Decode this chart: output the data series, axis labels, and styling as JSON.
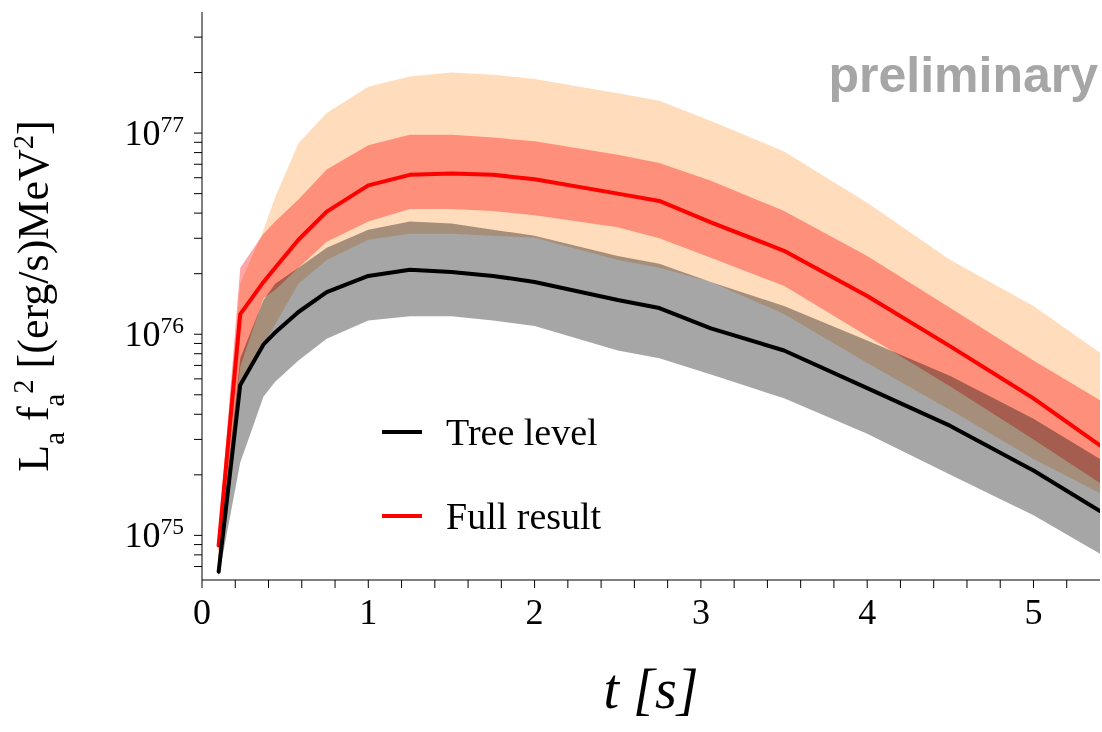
{
  "chart_data": {
    "type": "line",
    "xlabel": "t [s]",
    "ylabel": "L$_{a}$ f$_{a}$$^{2}$ [(erg/s)MeV$^{2}$]",
    "annotations": [
      "preliminary"
    ],
    "log": "y",
    "legend": "bottom left",
    "xlim": [
      0,
      5.4
    ],
    "xticks": [
      0,
      {
        "value": 0.2,
        "label": null
      },
      {
        "value": 0.4,
        "label": null
      },
      {
        "value": 0.6,
        "label": null
      },
      {
        "value": 0.8,
        "label": null
      },
      1,
      {
        "value": 1.2,
        "label": null
      },
      {
        "value": 1.4,
        "label": null
      },
      {
        "value": 1.6,
        "label": null
      },
      {
        "value": 1.8,
        "label": null
      },
      2,
      {
        "value": 2.2,
        "label": null
      },
      {
        "value": 2.4,
        "label": null
      },
      {
        "value": 2.6,
        "label": null
      },
      {
        "value": 2.8,
        "label": null
      },
      3,
      {
        "value": 3.2,
        "label": null
      },
      {
        "value": 3.4,
        "label": null
      },
      {
        "value": 3.6,
        "label": null
      },
      {
        "value": 3.8,
        "label": null
      },
      4,
      {
        "value": 4.2,
        "label": null
      },
      {
        "value": 4.4,
        "label": null
      },
      {
        "value": 4.6,
        "label": null
      },
      {
        "value": 4.8,
        "label": null
      },
      5,
      {
        "value": 5.2,
        "label": null
      }
    ],
    "ylim": [
      6e+74,
      4e+77
    ],
    "yticks": [
      {
        "value": 7e+74,
        "label": null
      },
      {
        "value": 8e+74,
        "label": null
      },
      {
        "value": 9e+74,
        "label": null
      },
      {
        "value": 1e+75,
        "label": "10$^{75}$"
      },
      {
        "value": 2e+75,
        "label": null
      },
      {
        "value": 3e+75,
        "label": null
      },
      {
        "value": 4e+75,
        "label": null
      },
      {
        "value": 5e+75,
        "label": null
      },
      {
        "value": 6e+75,
        "label": null
      },
      {
        "value": 7e+75,
        "label": null
      },
      {
        "value": 8e+75,
        "label": null
      },
      {
        "value": 9e+75,
        "label": null
      },
      {
        "value": 1e+76,
        "label": "10$^{76}$"
      },
      {
        "value": 2e+76,
        "label": null
      },
      {
        "value": 3e+76,
        "label": null
      },
      {
        "value": 4e+76,
        "label": null
      },
      {
        "value": 5e+76,
        "label": null
      },
      {
        "value": 6e+76,
        "label": null
      },
      {
        "value": 7e+76,
        "label": null
      },
      {
        "value": 8e+76,
        "label": null
      },
      {
        "value": 9e+76,
        "label": null
      },
      {
        "value": 1e+77,
        "label": "10$^{77}$"
      },
      {
        "value": 2e+77,
        "label": null
      },
      {
        "value": 3e+77,
        "label": null
      }
    ],
    "x": [
      0.1,
      0.23,
      0.37,
      0.44,
      0.58,
      0.75,
      1,
      1.25,
      1.5,
      1.75,
      2,
      2.5,
      2.75,
      3.06,
      3.5,
      4,
      4.5,
      5,
      5.4
    ],
    "series": [
      {
        "name": "Tree level",
        "color": "#000000",
        "values": [
          6.6e+74,
          5.6e+75,
          8.9e+75,
          1.02e+76,
          1.29e+76,
          1.62e+76,
          1.95e+76,
          2.09e+76,
          2.04e+76,
          1.95e+76,
          1.82e+76,
          1.48e+76,
          1.35e+76,
          1.07e+76,
          8.3e+75,
          5.4e+75,
          3.5e+75,
          2.1e+75,
          1.32e+75
        ],
        "lower": [
          6.2e+74,
          2.3e+75,
          4.9e+75,
          5.8e+75,
          7.4e+75,
          9.5e+75,
          1.17e+76,
          1.23e+76,
          1.23e+76,
          1.17e+76,
          1.1e+76,
          8.3e+75,
          7.6e+75,
          6.3e+75,
          4.8e+75,
          3.2e+75,
          2e+75,
          1.26e+75,
          8.1e+74
        ],
        "upper": [
          7.9e+74,
          7.6e+75,
          1.48e+76,
          1.78e+76,
          2.14e+76,
          2.69e+76,
          3.31e+76,
          3.63e+76,
          3.55e+76,
          3.31e+76,
          3.09e+76,
          2.45e+76,
          2.24e+76,
          1.82e+76,
          1.38e+76,
          9.3e+75,
          6.2e+75,
          3.8e+75,
          2.4e+75
        ]
      },
      {
        "name": "Full result",
        "color": "#ff0000",
        "values": [
          8.9e+74,
          1.26e+76,
          1.82e+76,
          2.14e+76,
          2.95e+76,
          4.07e+76,
          5.5e+76,
          6.2e+76,
          6.3e+76,
          6.2e+76,
          5.9e+76,
          5e+76,
          4.6e+76,
          3.6e+76,
          2.6e+76,
          1.55e+76,
          8.7e+75,
          4.8e+75,
          2.8e+75
        ],
        "lower": [
          7.6e+74,
          6.9e+75,
          1.51e+76,
          1.66e+76,
          2.14e+76,
          2.88e+76,
          3.63e+76,
          4.2e+76,
          4.2e+76,
          4.1e+76,
          3.9e+76,
          3.4e+76,
          3e+76,
          2.4e+76,
          1.74e+76,
          9.8e+75,
          5.5e+75,
          3e+75,
          1.82e+75
        ],
        "upper": [
          1e+75,
          2.14e+76,
          3.16e+76,
          3.63e+76,
          4.68e+76,
          6.6e+76,
          8.7e+76,
          9.8e+76,
          9.8e+76,
          9.5e+76,
          9.1e+76,
          7.8e+76,
          7.1e+76,
          5.8e+76,
          4.1e+76,
          2.45e+76,
          1.35e+76,
          7.4e+75,
          4.7e+75
        ]
      },
      {
        "color": "#fb9a40",
        "values": [
          null,
          null,
          null,
          null,
          null,
          null,
          null,
          null,
          null,
          null,
          null,
          null,
          null,
          null,
          null,
          null,
          null,
          null,
          null
        ],
        "lower": [
          7.1e+74,
          5.8e+75,
          8.9e+75,
          1.12e+76,
          1.78e+76,
          2.34e+76,
          2.95e+76,
          3.16e+76,
          3.16e+76,
          3.09e+76,
          3.02e+76,
          2.34e+76,
          2.14e+76,
          1.82e+76,
          1.26e+76,
          7.2e+75,
          4.2e+75,
          2.4e+75,
          1.62e+75
        ],
        "upper": [
          1.12e+75,
          1.78e+76,
          3.3e+76,
          4.8e+76,
          8.9e+76,
          1.26e+77,
          1.7e+77,
          1.91e+77,
          2e+77,
          1.95e+77,
          1.86e+77,
          1.58e+77,
          1.45e+77,
          1.15e+77,
          8.1e+76,
          4.5e+76,
          2.34e+76,
          1.38e+76,
          8.1e+75
        ]
      }
    ]
  }
}
